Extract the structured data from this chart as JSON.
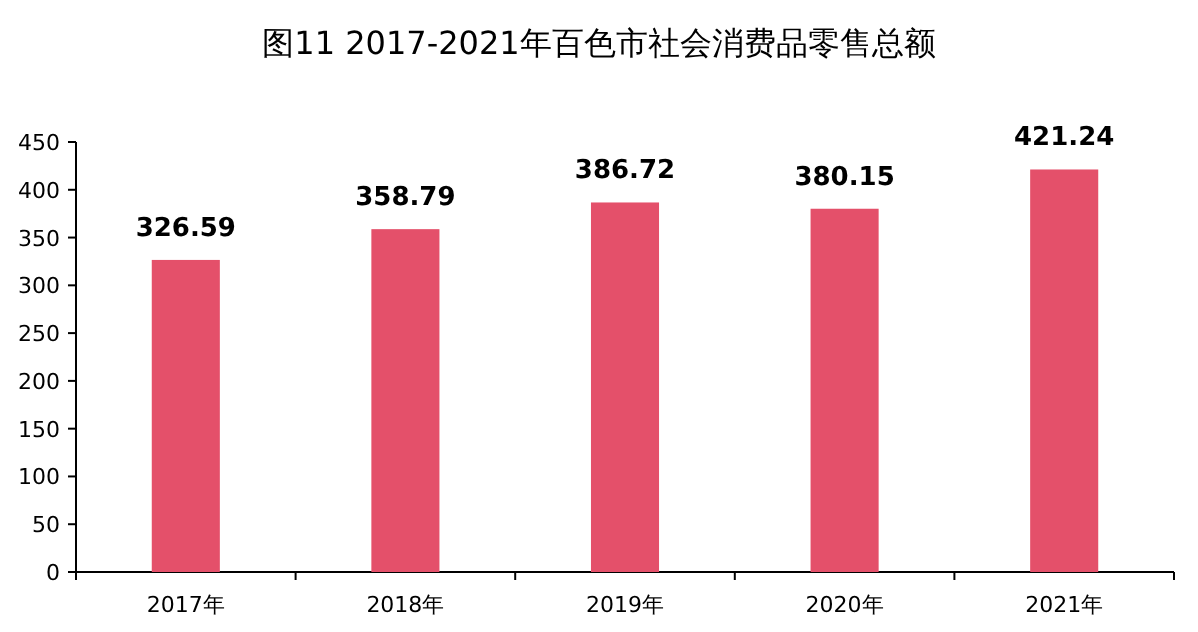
{
  "chart_data": {
    "type": "bar",
    "title": "图11 2017-2021年百色市社会消费品零售总额",
    "categories": [
      "2017年",
      "2018年",
      "2019年",
      "2020年",
      "2021年"
    ],
    "values": [
      326.59,
      358.79,
      386.72,
      380.15,
      421.24
    ],
    "color": "#e4506a",
    "ylim": [
      0,
      450
    ],
    "yticks": [
      0,
      50,
      100,
      150,
      200,
      250,
      300,
      350,
      400,
      450
    ],
    "data_labels": true,
    "grid": false
  }
}
